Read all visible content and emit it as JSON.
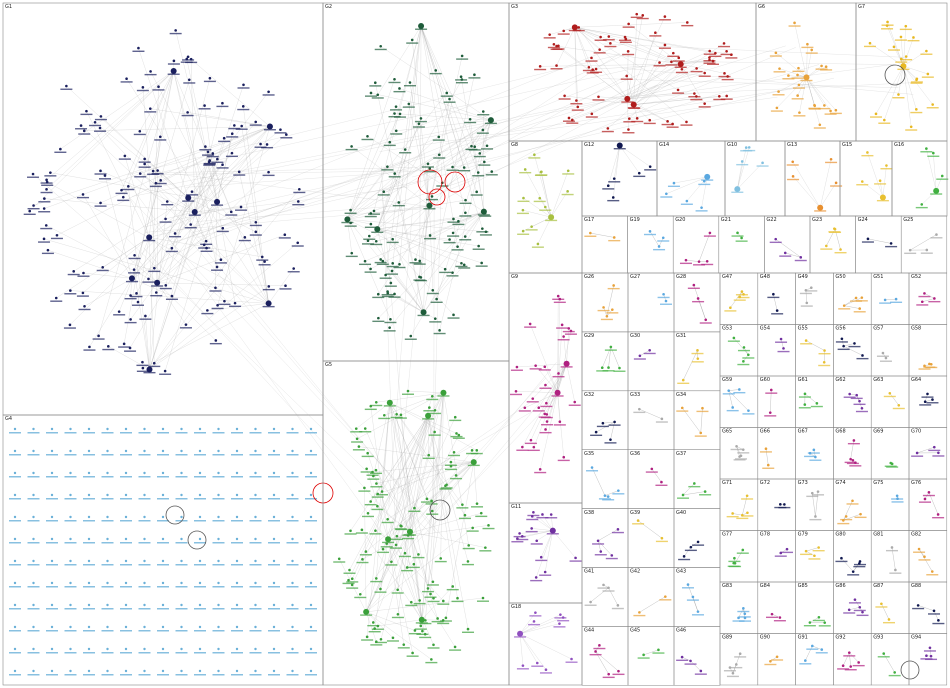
{
  "panels": [
    {
      "label": "G1"
    },
    {
      "label": "G2"
    },
    {
      "label": "G3"
    },
    {
      "label": "G6"
    },
    {
      "label": "G7"
    },
    {
      "label": "G4"
    },
    {
      "label": "G5"
    },
    {
      "label": "G8"
    },
    {
      "label": "G12"
    },
    {
      "label": "G14"
    },
    {
      "label": "G10"
    },
    {
      "label": "G13"
    },
    {
      "label": "G15"
    },
    {
      "label": "G16"
    },
    {
      "label": "G9"
    },
    {
      "label": "G11"
    },
    {
      "label": "G18"
    }
  ],
  "small_panels": [
    "G17",
    "G19",
    "G20",
    "G21",
    "G22",
    "G23",
    "G24",
    "G25",
    "G26",
    "G27",
    "G28",
    "G29",
    "G30",
    "G31",
    "G32",
    "G33",
    "G34",
    "G35",
    "G36",
    "G37",
    "G38",
    "G39",
    "G40",
    "G41",
    "G42",
    "G43",
    "G44",
    "G45",
    "G46",
    "G47",
    "G48",
    "G49",
    "G50",
    "G51",
    "G52",
    "G53",
    "G54",
    "G55",
    "G56",
    "G57",
    "G58",
    "G59",
    "G60",
    "G61",
    "G62",
    "G63",
    "G64",
    "G65",
    "G66",
    "G67",
    "G68",
    "G69",
    "G70",
    "G71",
    "G72",
    "G73",
    "G74",
    "G75",
    "G76",
    "G77",
    "G78",
    "G79",
    "G80",
    "G81",
    "G82",
    "G83",
    "G84",
    "G85",
    "G86",
    "G87",
    "G88",
    "G89",
    "G90",
    "G91",
    "G92",
    "G93",
    "G94"
  ]
}
